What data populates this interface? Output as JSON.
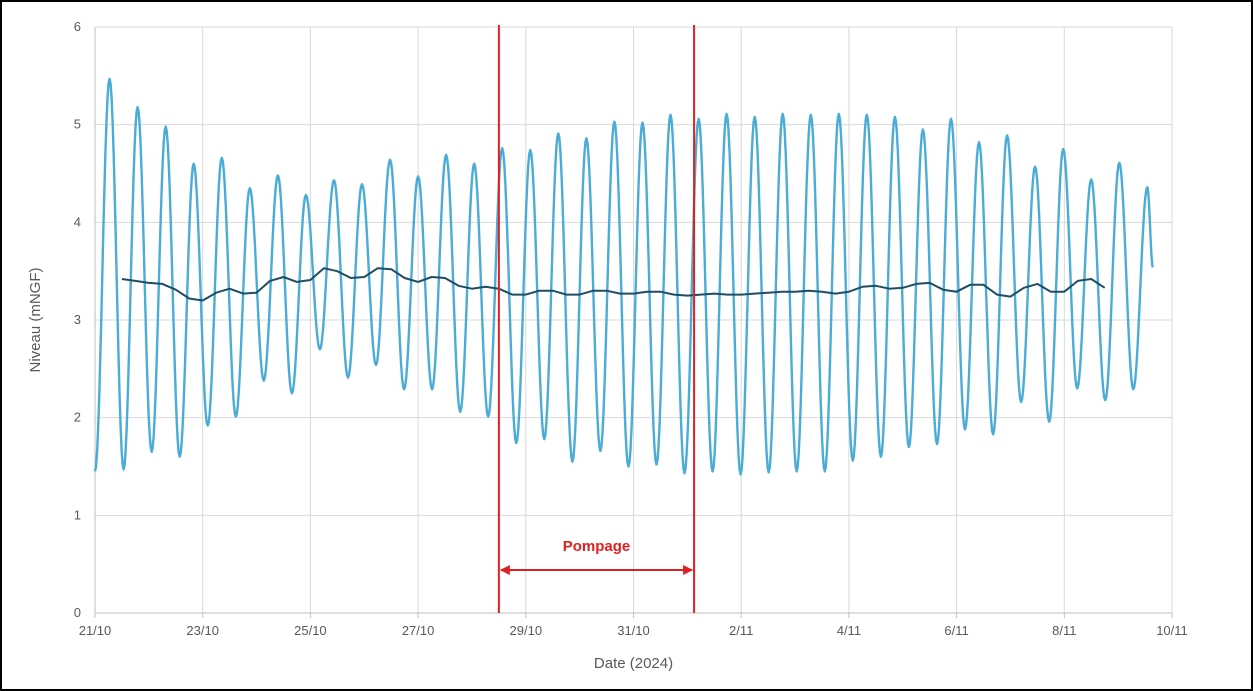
{
  "chart_data": {
    "type": "line",
    "xlabel": "Date (2024)",
    "ylabel": "Niveau (mNGF)",
    "xlim_days": null,
    "x_ticks": [
      "21/10",
      "23/10",
      "25/10",
      "27/10",
      "29/10",
      "31/10",
      "2/11",
      "4/11",
      "6/11",
      "8/11",
      "10/11"
    ],
    "x_range": [
      "2024-10-21",
      "2024-11-10"
    ],
    "ylim": [
      0,
      6
    ],
    "y_ticks": [
      "0",
      "1",
      "2",
      "3",
      "4",
      "5",
      "6"
    ],
    "grid": true,
    "colors": {
      "tide": "#4BACD6",
      "mean": "#1F4E62",
      "annotation": "#E02020",
      "grid": "#D9D9D9",
      "axis": "#BFBFBF"
    },
    "series": [
      {
        "role": "tide",
        "start": "2024-10-21 00:00",
        "points": [
          [
            "2024-10-21 00:00",
            1.45
          ],
          [
            "2024-10-21 06:30",
            5.47
          ],
          [
            "2024-10-21 12:45",
            1.47
          ],
          [
            "2024-10-21 19:00",
            5.18
          ],
          [
            "2024-10-22 01:15",
            1.65
          ],
          [
            "2024-10-22 07:30",
            4.98
          ],
          [
            "2024-10-22 13:45",
            1.6
          ],
          [
            "2024-10-22 20:00",
            4.6
          ],
          [
            "2024-10-23 02:15",
            1.92
          ],
          [
            "2024-10-23 08:30",
            4.66
          ],
          [
            "2024-10-23 14:45",
            2.01
          ],
          [
            "2024-10-23 21:00",
            4.35
          ],
          [
            "2024-10-24 03:15",
            2.38
          ],
          [
            "2024-10-24 09:30",
            4.48
          ],
          [
            "2024-10-24 15:45",
            2.25
          ],
          [
            "2024-10-24 22:00",
            4.28
          ],
          [
            "2024-10-25 04:15",
            2.7
          ],
          [
            "2024-10-25 10:30",
            4.43
          ],
          [
            "2024-10-25 16:45",
            2.41
          ],
          [
            "2024-10-25 23:00",
            4.39
          ],
          [
            "2024-10-26 05:15",
            2.54
          ],
          [
            "2024-10-26 11:30",
            4.64
          ],
          [
            "2024-10-26 17:45",
            2.29
          ],
          [
            "2024-10-27 00:00",
            4.47
          ],
          [
            "2024-10-27 06:15",
            2.29
          ],
          [
            "2024-10-27 12:30",
            4.69
          ],
          [
            "2024-10-27 18:45",
            2.06
          ],
          [
            "2024-10-28 01:00",
            4.6
          ],
          [
            "2024-10-28 07:15",
            2.01
          ],
          [
            "2024-10-28 13:30",
            4.76
          ],
          [
            "2024-10-28 19:45",
            1.74
          ],
          [
            "2024-10-29 02:00",
            4.74
          ],
          [
            "2024-10-29 08:15",
            1.78
          ],
          [
            "2024-10-29 14:30",
            4.91
          ],
          [
            "2024-10-29 20:45",
            1.55
          ],
          [
            "2024-10-30 03:00",
            4.86
          ],
          [
            "2024-10-30 09:15",
            1.66
          ],
          [
            "2024-10-30 15:30",
            5.03
          ],
          [
            "2024-10-30 21:45",
            1.5
          ],
          [
            "2024-10-31 04:00",
            5.02
          ],
          [
            "2024-10-31 10:15",
            1.52
          ],
          [
            "2024-10-31 16:30",
            5.1
          ],
          [
            "2024-10-31 22:45",
            1.43
          ],
          [
            "2024-11-01 05:00",
            5.06
          ],
          [
            "2024-11-01 11:15",
            1.45
          ],
          [
            "2024-11-01 17:30",
            5.11
          ],
          [
            "2024-11-01 23:45",
            1.42
          ],
          [
            "2024-11-02 06:00",
            5.08
          ],
          [
            "2024-11-02 12:15",
            1.44
          ],
          [
            "2024-11-02 18:30",
            5.11
          ],
          [
            "2024-11-03 00:45",
            1.45
          ],
          [
            "2024-11-03 07:00",
            5.1
          ],
          [
            "2024-11-03 13:15",
            1.45
          ],
          [
            "2024-11-03 19:30",
            5.11
          ],
          [
            "2024-11-04 01:45",
            1.56
          ],
          [
            "2024-11-04 08:00",
            5.1
          ],
          [
            "2024-11-04 14:15",
            1.6
          ],
          [
            "2024-11-04 20:30",
            5.08
          ],
          [
            "2024-11-05 02:45",
            1.7
          ],
          [
            "2024-11-05 09:00",
            4.95
          ],
          [
            "2024-11-05 15:15",
            1.73
          ],
          [
            "2024-11-05 21:30",
            5.06
          ],
          [
            "2024-11-06 03:45",
            1.88
          ],
          [
            "2024-11-06 10:00",
            4.82
          ],
          [
            "2024-11-06 16:15",
            1.83
          ],
          [
            "2024-11-06 22:30",
            4.89
          ],
          [
            "2024-11-07 04:45",
            2.16
          ],
          [
            "2024-11-07 11:00",
            4.57
          ],
          [
            "2024-11-07 17:15",
            1.96
          ],
          [
            "2024-11-07 23:30",
            4.75
          ],
          [
            "2024-11-08 05:45",
            2.3
          ],
          [
            "2024-11-08 12:00",
            4.44
          ],
          [
            "2024-11-08 18:15",
            2.18
          ],
          [
            "2024-11-09 00:30",
            4.61
          ],
          [
            "2024-11-09 06:45",
            2.29
          ],
          [
            "2024-11-09 13:00",
            4.36
          ],
          [
            "2024-11-09 15:30",
            3.54
          ]
        ]
      },
      {
        "role": "mean",
        "points": [
          [
            "2024-10-21 12:00",
            3.42
          ],
          [
            "2024-10-21 18:00",
            3.4
          ],
          [
            "2024-10-22 00:00",
            3.38
          ],
          [
            "2024-10-22 06:00",
            3.37
          ],
          [
            "2024-10-22 12:00",
            3.31
          ],
          [
            "2024-10-22 18:00",
            3.22
          ],
          [
            "2024-10-23 00:00",
            3.2
          ],
          [
            "2024-10-23 06:00",
            3.28
          ],
          [
            "2024-10-23 12:00",
            3.32
          ],
          [
            "2024-10-23 18:00",
            3.27
          ],
          [
            "2024-10-24 00:00",
            3.28
          ],
          [
            "2024-10-24 06:00",
            3.4
          ],
          [
            "2024-10-24 12:00",
            3.44
          ],
          [
            "2024-10-24 18:00",
            3.39
          ],
          [
            "2024-10-25 00:00",
            3.41
          ],
          [
            "2024-10-25 06:00",
            3.53
          ],
          [
            "2024-10-25 12:00",
            3.5
          ],
          [
            "2024-10-25 18:00",
            3.43
          ],
          [
            "2024-10-26 00:00",
            3.44
          ],
          [
            "2024-10-26 06:00",
            3.53
          ],
          [
            "2024-10-26 12:00",
            3.52
          ],
          [
            "2024-10-26 18:00",
            3.43
          ],
          [
            "2024-10-27 00:00",
            3.39
          ],
          [
            "2024-10-27 06:00",
            3.44
          ],
          [
            "2024-10-27 12:00",
            3.43
          ],
          [
            "2024-10-27 18:00",
            3.35
          ],
          [
            "2024-10-28 00:00",
            3.32
          ],
          [
            "2024-10-28 06:00",
            3.34
          ],
          [
            "2024-10-28 12:00",
            3.32
          ],
          [
            "2024-10-28 18:00",
            3.26
          ],
          [
            "2024-10-29 00:00",
            3.26
          ],
          [
            "2024-10-29 06:00",
            3.3
          ],
          [
            "2024-10-29 12:00",
            3.3
          ],
          [
            "2024-10-29 18:00",
            3.26
          ],
          [
            "2024-10-30 00:00",
            3.26
          ],
          [
            "2024-10-30 06:00",
            3.3
          ],
          [
            "2024-10-30 12:00",
            3.3
          ],
          [
            "2024-10-30 18:00",
            3.27
          ],
          [
            "2024-10-31 00:00",
            3.27
          ],
          [
            "2024-10-31 06:00",
            3.29
          ],
          [
            "2024-10-31 12:00",
            3.29
          ],
          [
            "2024-10-31 18:00",
            3.26
          ],
          [
            "2024-11-01 00:00",
            3.25
          ],
          [
            "2024-11-01 06:00",
            3.26
          ],
          [
            "2024-11-01 12:00",
            3.27
          ],
          [
            "2024-11-01 18:00",
            3.26
          ],
          [
            "2024-11-02 00:00",
            3.26
          ],
          [
            "2024-11-02 06:00",
            3.27
          ],
          [
            "2024-11-02 12:00",
            3.28
          ],
          [
            "2024-11-02 18:00",
            3.29
          ],
          [
            "2024-11-03 00:00",
            3.29
          ],
          [
            "2024-11-03 06:00",
            3.3
          ],
          [
            "2024-11-03 12:00",
            3.29
          ],
          [
            "2024-11-03 18:00",
            3.27
          ],
          [
            "2024-11-04 00:00",
            3.29
          ],
          [
            "2024-11-04 06:00",
            3.34
          ],
          [
            "2024-11-04 12:00",
            3.35
          ],
          [
            "2024-11-04 18:00",
            3.32
          ],
          [
            "2024-11-05 00:00",
            3.33
          ],
          [
            "2024-11-05 06:00",
            3.37
          ],
          [
            "2024-11-05 12:00",
            3.38
          ],
          [
            "2024-11-05 18:00",
            3.31
          ],
          [
            "2024-11-06 00:00",
            3.29
          ],
          [
            "2024-11-06 06:00",
            3.36
          ],
          [
            "2024-11-06 12:00",
            3.36
          ],
          [
            "2024-11-06 18:00",
            3.26
          ],
          [
            "2024-11-07 00:00",
            3.24
          ],
          [
            "2024-11-07 06:00",
            3.33
          ],
          [
            "2024-11-07 12:00",
            3.37
          ],
          [
            "2024-11-07 18:00",
            3.29
          ],
          [
            "2024-11-08 00:00",
            3.29
          ],
          [
            "2024-11-08 06:00",
            3.4
          ],
          [
            "2024-11-08 12:00",
            3.42
          ],
          [
            "2024-11-08 18:00",
            3.33
          ]
        ]
      }
    ],
    "annotation": {
      "label": "Pompage",
      "start": "2024-10-28 12:00",
      "end": "2024-11-01 03:00"
    }
  }
}
